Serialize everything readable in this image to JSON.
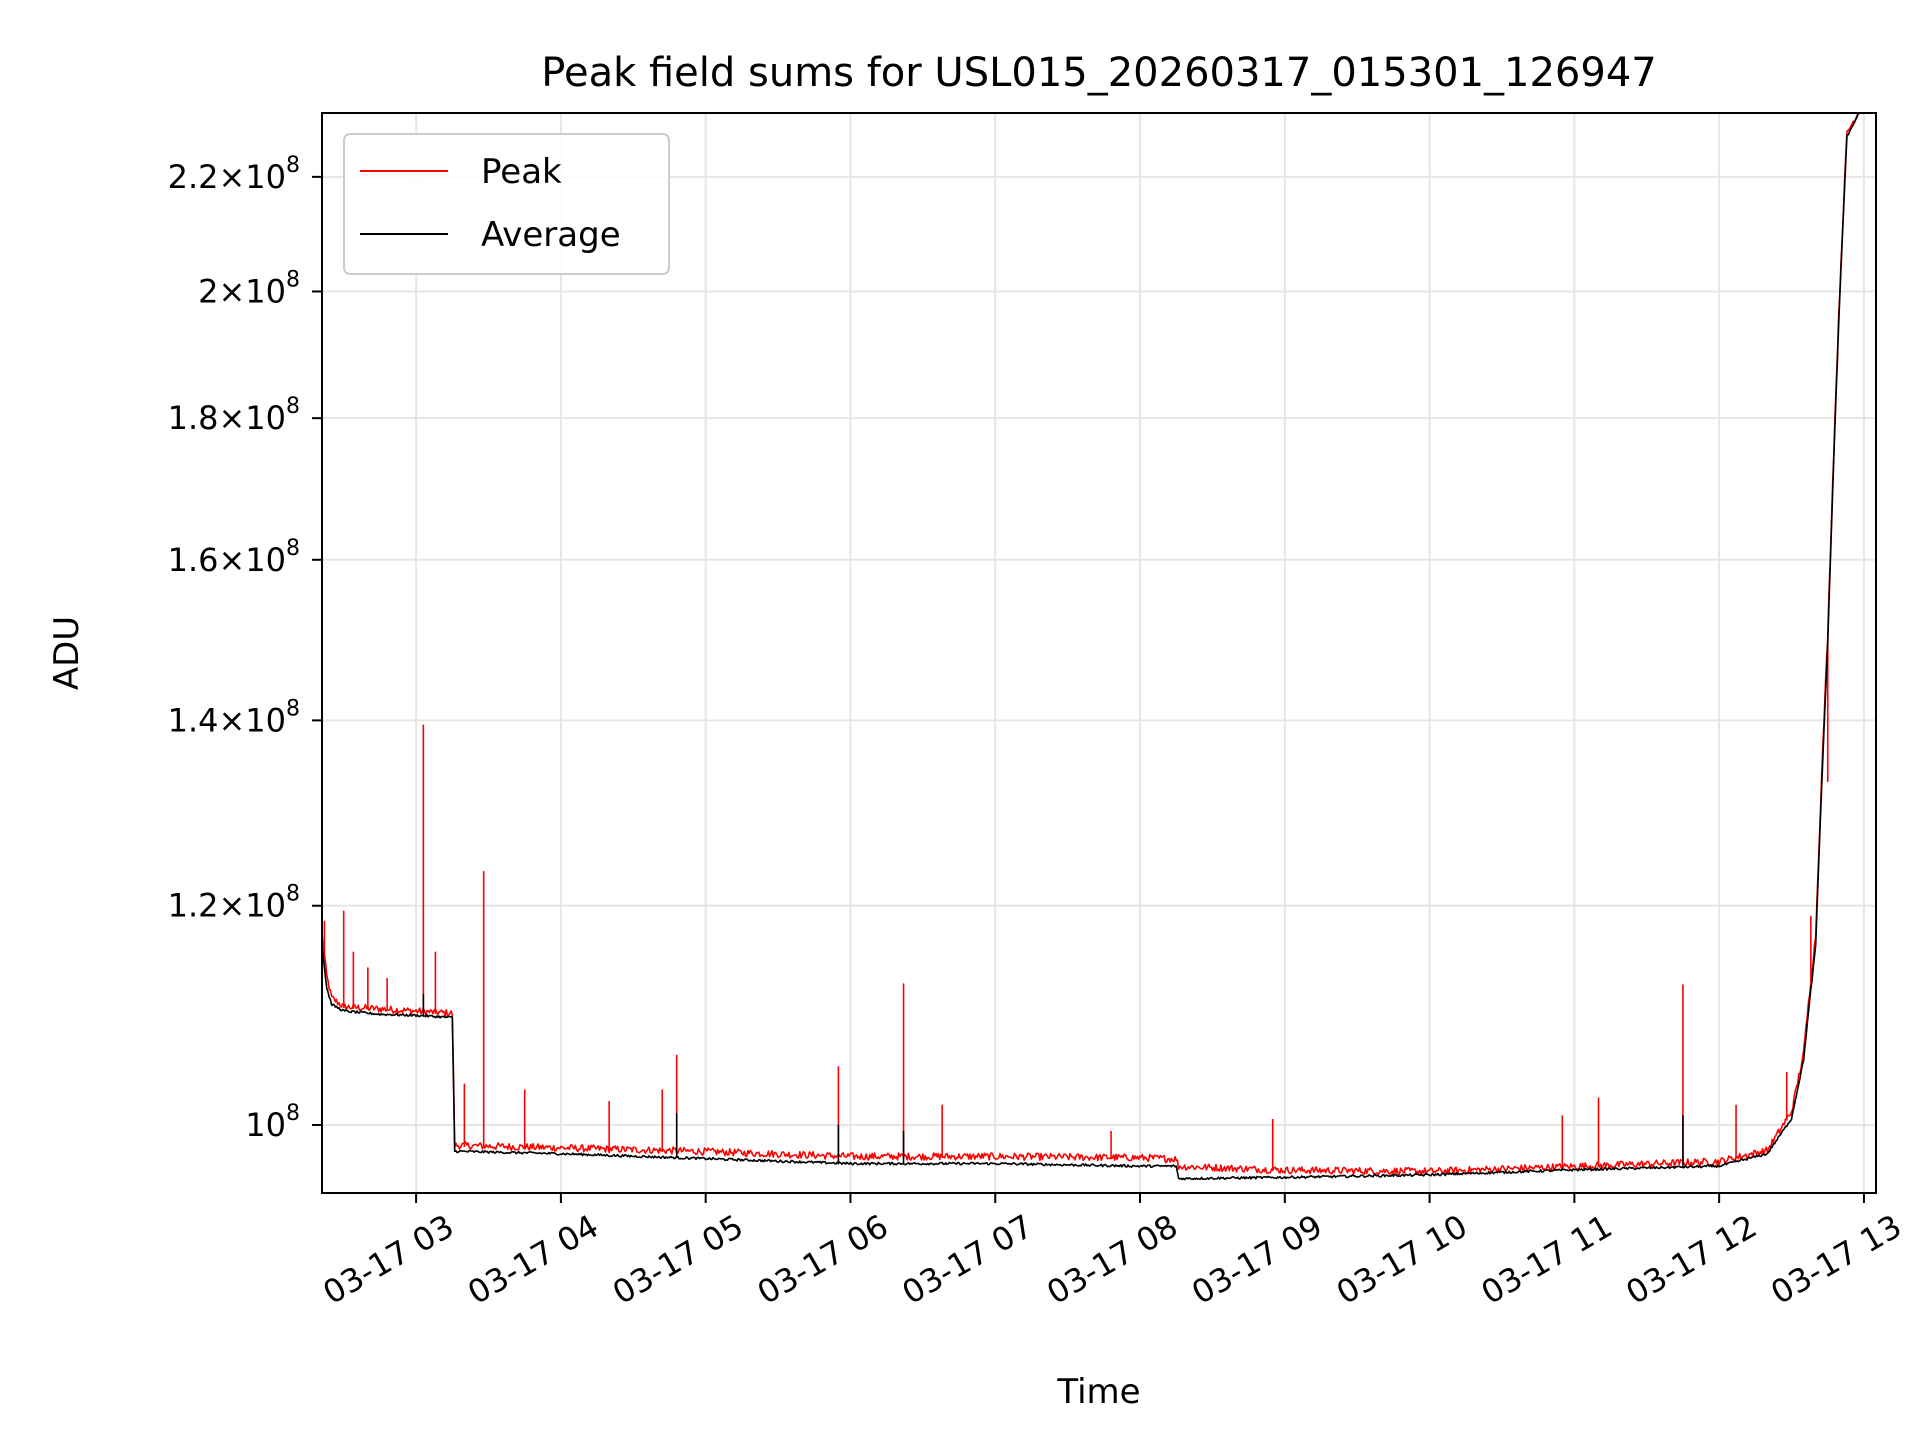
{
  "chart_data": {
    "type": "line",
    "title": "Peak field sums for USL015_20260317_015301_126947",
    "xlabel": "Time",
    "ylabel": "ADU",
    "x_axis": "datetime",
    "y_scale": "log",
    "xlim": [
      "2026-03-17 02:21",
      "2026-03-17 13:05"
    ],
    "ylim": [
      94500000,
      232000000
    ],
    "grid": true,
    "legend_position": "upper-left",
    "x_ticks": [
      {
        "value": "2026-03-17 03:00",
        "label": "03-17 03"
      },
      {
        "value": "2026-03-17 04:00",
        "label": "03-17 04"
      },
      {
        "value": "2026-03-17 05:00",
        "label": "03-17 05"
      },
      {
        "value": "2026-03-17 06:00",
        "label": "03-17 06"
      },
      {
        "value": "2026-03-17 07:00",
        "label": "03-17 07"
      },
      {
        "value": "2026-03-17 08:00",
        "label": "03-17 08"
      },
      {
        "value": "2026-03-17 09:00",
        "label": "03-17 09"
      },
      {
        "value": "2026-03-17 10:00",
        "label": "03-17 10"
      },
      {
        "value": "2026-03-17 11:00",
        "label": "03-17 11"
      },
      {
        "value": "2026-03-17 12:00",
        "label": "03-17 12"
      },
      {
        "value": "2026-03-17 13:00",
        "label": "03-17 13"
      }
    ],
    "y_ticks": [
      {
        "value": 100000000,
        "mantissa": "",
        "exponent": "8"
      },
      {
        "value": 120000000,
        "mantissa": "1.2",
        "exponent": "8"
      },
      {
        "value": 140000000,
        "mantissa": "1.4",
        "exponent": "8"
      },
      {
        "value": 160000000,
        "mantissa": "1.6",
        "exponent": "8"
      },
      {
        "value": 180000000,
        "mantissa": "1.8",
        "exponent": "8"
      },
      {
        "value": 200000000,
        "mantissa": "2",
        "exponent": "8"
      },
      {
        "value": 220000000,
        "mantissa": "2.2",
        "exponent": "8"
      }
    ],
    "series": [
      {
        "name": "Peak",
        "color": "#ff0000",
        "points": [
          [
            "2026-03-17 02:21",
            117000000
          ],
          [
            "2026-03-17 02:23",
            113000000
          ],
          [
            "2026-03-17 02:25",
            111000000
          ],
          [
            "2026-03-17 02:30",
            110200000
          ],
          [
            "2026-03-17 02:45",
            110000000
          ],
          [
            "2026-03-17 03:00",
            109800000
          ],
          [
            "2026-03-17 03:15",
            109600000
          ],
          [
            "2026-03-17 03:16",
            98200000
          ],
          [
            "2026-03-17 04:00",
            98000000
          ],
          [
            "2026-03-17 05:00",
            97700000
          ],
          [
            "2026-03-17 06:00",
            97300000
          ],
          [
            "2026-03-17 07:00",
            97300000
          ],
          [
            "2026-03-17 08:00",
            97200000
          ],
          [
            "2026-03-17 08:15",
            97100000
          ],
          [
            "2026-03-17 08:16",
            96500000
          ],
          [
            "2026-03-17 09:00",
            96200000
          ],
          [
            "2026-03-17 10:00",
            96100000
          ],
          [
            "2026-03-17 11:00",
            96500000
          ],
          [
            "2026-03-17 12:00",
            96900000
          ],
          [
            "2026-03-17 12:20",
            97800000
          ],
          [
            "2026-03-17 12:30",
            101000000
          ],
          [
            "2026-03-17 12:35",
            106000000
          ],
          [
            "2026-03-17 12:40",
            117000000
          ],
          [
            "2026-03-17 12:45",
            150000000
          ],
          [
            "2026-03-17 12:50",
            200000000
          ],
          [
            "2026-03-17 12:53",
            228000000
          ],
          [
            "2026-03-17 12:58",
            232000000
          ]
        ],
        "spikes": [
          [
            "2026-03-17 02:22",
            118500000
          ],
          [
            "2026-03-17 02:30",
            119500000
          ],
          [
            "2026-03-17 02:34",
            115500000
          ],
          [
            "2026-03-17 02:40",
            114000000
          ],
          [
            "2026-03-17 02:48",
            113000000
          ],
          [
            "2026-03-17 03:03",
            139500000
          ],
          [
            "2026-03-17 03:08",
            115500000
          ],
          [
            "2026-03-17 03:20",
            103500000
          ],
          [
            "2026-03-17 03:28",
            123500000
          ],
          [
            "2026-03-17 03:45",
            103000000
          ],
          [
            "2026-03-17 04:20",
            102000000
          ],
          [
            "2026-03-17 04:42",
            103000000
          ],
          [
            "2026-03-17 04:48",
            106000000
          ],
          [
            "2026-03-17 05:55",
            105000000
          ],
          [
            "2026-03-17 06:22",
            112500000
          ],
          [
            "2026-03-17 06:38",
            101700000
          ],
          [
            "2026-03-17 07:48",
            99500000
          ],
          [
            "2026-03-17 08:55",
            100500000
          ],
          [
            "2026-03-17 10:55",
            100800000
          ],
          [
            "2026-03-17 11:10",
            102300000
          ],
          [
            "2026-03-17 11:45",
            112400000
          ],
          [
            "2026-03-17 12:07",
            101700000
          ],
          [
            "2026-03-17 12:28",
            104500000
          ],
          [
            "2026-03-17 12:38",
            119000000
          ],
          [
            "2026-03-17 12:45",
            133000000
          ]
        ]
      },
      {
        "name": "Average",
        "color": "#000000",
        "points": [
          [
            "2026-03-17 02:21",
            116000000
          ],
          [
            "2026-03-17 02:23",
            112000000
          ],
          [
            "2026-03-17 02:25",
            110500000
          ],
          [
            "2026-03-17 02:30",
            109900000
          ],
          [
            "2026-03-17 02:45",
            109600000
          ],
          [
            "2026-03-17 03:00",
            109500000
          ],
          [
            "2026-03-17 03:15",
            109300000
          ],
          [
            "2026-03-17 03:16",
            97800000
          ],
          [
            "2026-03-17 04:00",
            97600000
          ],
          [
            "2026-03-17 05:00",
            97200000
          ],
          [
            "2026-03-17 06:00",
            96800000
          ],
          [
            "2026-03-17 07:00",
            96800000
          ],
          [
            "2026-03-17 08:00",
            96600000
          ],
          [
            "2026-03-17 08:15",
            96600000
          ],
          [
            "2026-03-17 08:16",
            95600000
          ],
          [
            "2026-03-17 09:00",
            95700000
          ],
          [
            "2026-03-17 10:00",
            95900000
          ],
          [
            "2026-03-17 11:00",
            96300000
          ],
          [
            "2026-03-17 12:00",
            96600000
          ],
          [
            "2026-03-17 12:20",
            97600000
          ],
          [
            "2026-03-17 12:30",
            100500000
          ],
          [
            "2026-03-17 12:35",
            105500000
          ],
          [
            "2026-03-17 12:40",
            116000000
          ],
          [
            "2026-03-17 12:45",
            149000000
          ],
          [
            "2026-03-17 12:50",
            199000000
          ],
          [
            "2026-03-17 12:53",
            227500000
          ],
          [
            "2026-03-17 12:58",
            232000000
          ]
        ],
        "spikes": [
          [
            "2026-03-17 03:03",
            111500000
          ],
          [
            "2026-03-17 04:48",
            101000000
          ],
          [
            "2026-03-17 05:55",
            100000000
          ],
          [
            "2026-03-17 06:22",
            99500000
          ],
          [
            "2026-03-17 11:45",
            100800000
          ]
        ]
      }
    ]
  }
}
